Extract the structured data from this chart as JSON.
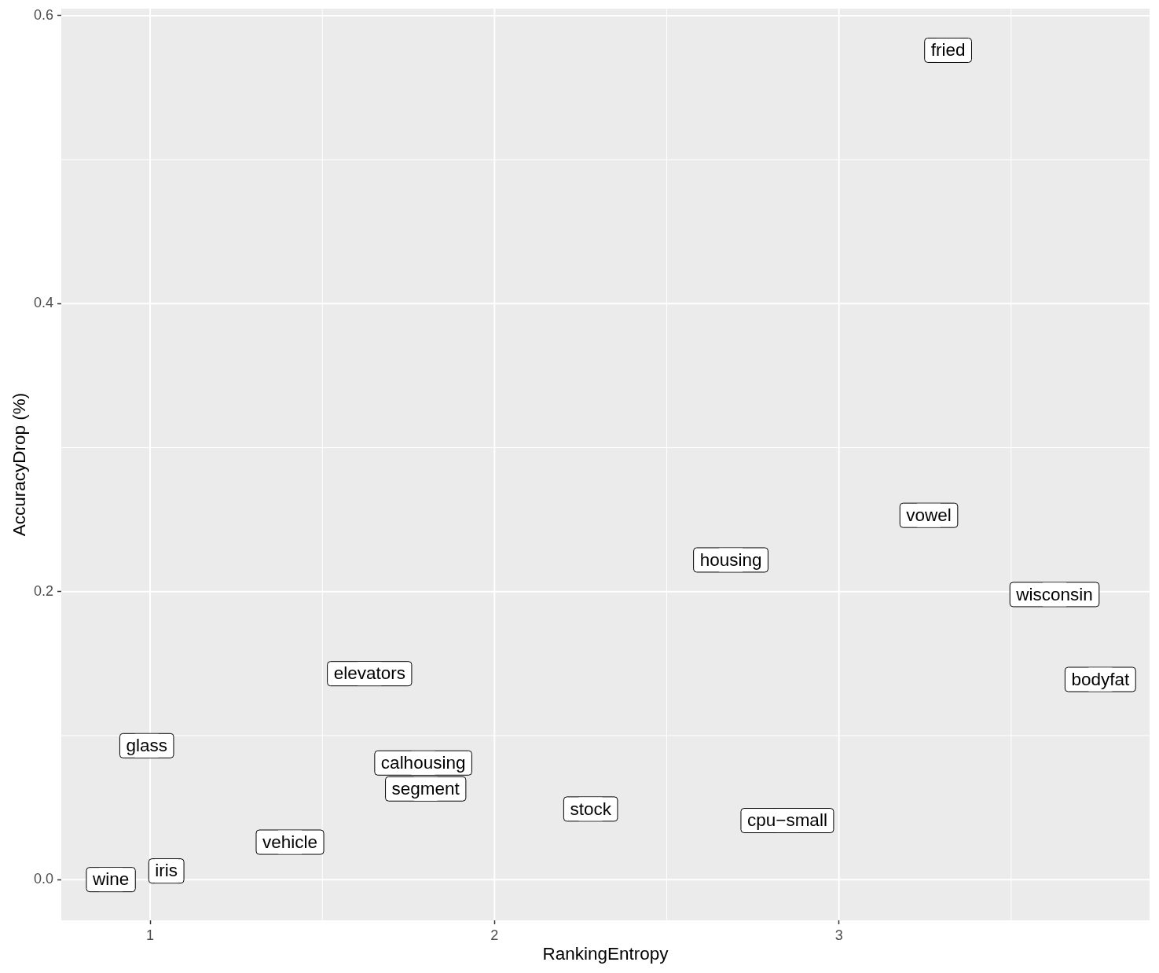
{
  "chart_data": {
    "type": "scatter",
    "xlabel": "RankingEntropy",
    "ylabel": "AccuracyDrop (%)",
    "x": [
      0.886,
      1.047,
      0.99,
      1.406,
      1.637,
      1.793,
      1.8,
      2.279,
      2.85,
      2.686,
      3.261,
      3.626,
      3.759,
      3.317
    ],
    "values": [
      0.0,
      0.006,
      0.093,
      0.026,
      0.143,
      0.081,
      0.063,
      0.049,
      0.041,
      0.222,
      0.253,
      0.198,
      0.139,
      0.576
    ],
    "value_labels": [
      "wine",
      "iris",
      "glass",
      "vehicle",
      "elevators",
      "calhousing",
      "segment",
      "stock",
      "cpu−small",
      "housing",
      "vowel",
      "wisconsin",
      "bodyfat",
      "fried"
    ],
    "color": "#ffffff",
    "marker": "square",
    "legend": false,
    "grid": true,
    "xlim": [
      0.742,
      3.902
    ],
    "xticks": [
      1,
      2,
      3
    ],
    "ylim": [
      -0.0283,
      0.6049
    ],
    "yticks": [
      {
        "value": 0,
        "label": "0.0"
      },
      0.2,
      0.4,
      0.6
    ]
  }
}
